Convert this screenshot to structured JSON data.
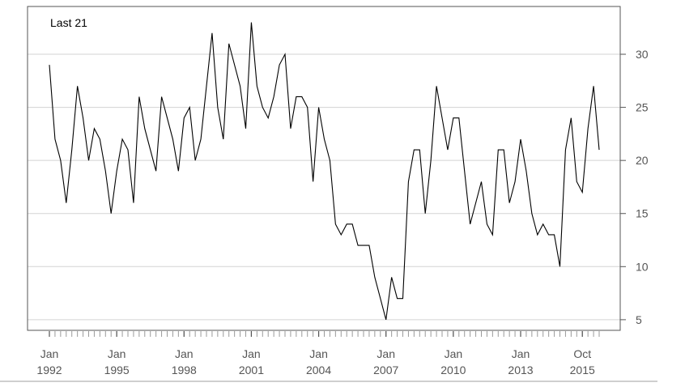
{
  "chart_data": {
    "type": "line",
    "title": "",
    "legend_text": "Last 21",
    "xlabel": "",
    "ylabel": "",
    "ylim": [
      4.0,
      34.5
    ],
    "y_ticks": [
      5,
      10,
      15,
      20,
      25,
      30
    ],
    "y_axis_side": "right",
    "grid": "horizontal",
    "x_start": "Jan 1992",
    "frequency": "quarterly",
    "x_ticks": [
      {
        "label_top": "Jan",
        "label_bottom": "1992",
        "date": "1992-01"
      },
      {
        "label_top": "Jan",
        "label_bottom": "1995",
        "date": "1995-01"
      },
      {
        "label_top": "Jan",
        "label_bottom": "1998",
        "date": "1998-01"
      },
      {
        "label_top": "Jan",
        "label_bottom": "2001",
        "date": "2001-01"
      },
      {
        "label_top": "Jan",
        "label_bottom": "2004",
        "date": "2004-01"
      },
      {
        "label_top": "Jan",
        "label_bottom": "2007",
        "date": "2007-01"
      },
      {
        "label_top": "Jan",
        "label_bottom": "2010",
        "date": "2010-01"
      },
      {
        "label_top": "Jan",
        "label_bottom": "2013",
        "date": "2013-01"
      },
      {
        "label_top": "Oct",
        "label_bottom": "2015",
        "date": "2015-10"
      }
    ],
    "series": [
      {
        "values": [
          29,
          22,
          20,
          16,
          21,
          27,
          24,
          20,
          23,
          22,
          19,
          15,
          19,
          22,
          21,
          16,
          26,
          23,
          21,
          19,
          26,
          24,
          22,
          19,
          24,
          25,
          20,
          22,
          27,
          32,
          25,
          22,
          31,
          29,
          27,
          23,
          33,
          27,
          25,
          24,
          26,
          29,
          30,
          23,
          26,
          26,
          25,
          18,
          25,
          22,
          20,
          14,
          13,
          14,
          14,
          12,
          12,
          12,
          9,
          7,
          5,
          9,
          7,
          7,
          18,
          21,
          21,
          15,
          20,
          27,
          24,
          21,
          24,
          24,
          19,
          14,
          16,
          18,
          14,
          13,
          21,
          21,
          16,
          18,
          22,
          19,
          15,
          13,
          14,
          13,
          13,
          10,
          21,
          24,
          18,
          17,
          23,
          27,
          21
        ]
      }
    ],
    "colors": {
      "line": "#000000",
      "grid": "#d3d3d3",
      "axis": "#555555",
      "text": "#555555"
    }
  }
}
